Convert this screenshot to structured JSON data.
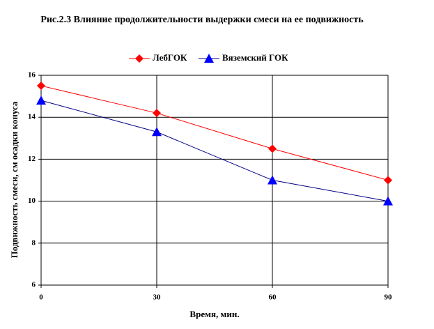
{
  "chart_data": {
    "type": "line",
    "title": "Рис.2.3 Влияние продолжительности выдержки смеси на ее подвижность",
    "x_label": "Время, мин.",
    "y_label": "Подвижность смеси, см осадки конуса",
    "x": [
      0,
      30,
      60,
      90
    ],
    "series": [
      {
        "name": "ЛебГОК",
        "color": "#ff0000",
        "marker_color": "#ff0000",
        "marker": "diamond",
        "values": [
          15.5,
          14.2,
          12.5,
          11
        ]
      },
      {
        "name": "Вяземский ГОК",
        "color": "#000080",
        "marker_color": "#0000ff",
        "marker": "triangle",
        "values": [
          14.8,
          13.3,
          11,
          10
        ]
      }
    ],
    "xlim": [
      0,
      90
    ],
    "xticks": [
      0,
      30,
      60,
      90
    ],
    "ylim": [
      6,
      16
    ],
    "yticks": [
      6,
      8,
      10,
      12,
      14,
      16
    ],
    "grid": true,
    "legend": "top"
  }
}
